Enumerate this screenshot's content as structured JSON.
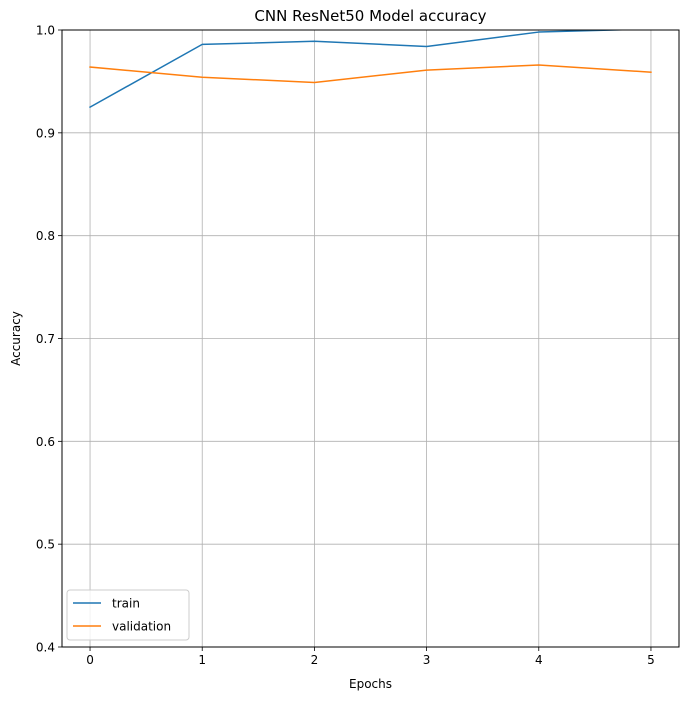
{
  "chart_data": {
    "type": "line",
    "title": "CNN ResNet50 Model accuracy",
    "xlabel": "Epochs",
    "ylabel": "Accuracy",
    "x": [
      0,
      1,
      2,
      3,
      4,
      5
    ],
    "xlim": [
      -0.25,
      5.25
    ],
    "ylim": [
      0.4,
      1.0
    ],
    "xticks": [
      "0",
      "1",
      "2",
      "3",
      "4",
      "5"
    ],
    "yticks": [
      "0.4",
      "0.5",
      "0.6",
      "0.7",
      "0.8",
      "0.9",
      "1.0"
    ],
    "grid": true,
    "legend_position": "lower-left",
    "series": [
      {
        "name": "train",
        "color": "#1f77b4",
        "values": [
          0.925,
          0.986,
          0.989,
          0.984,
          0.998,
          1.001
        ]
      },
      {
        "name": "validation",
        "color": "#ff7f0e",
        "values": [
          0.964,
          0.954,
          0.949,
          0.961,
          0.966,
          0.959
        ]
      }
    ]
  }
}
